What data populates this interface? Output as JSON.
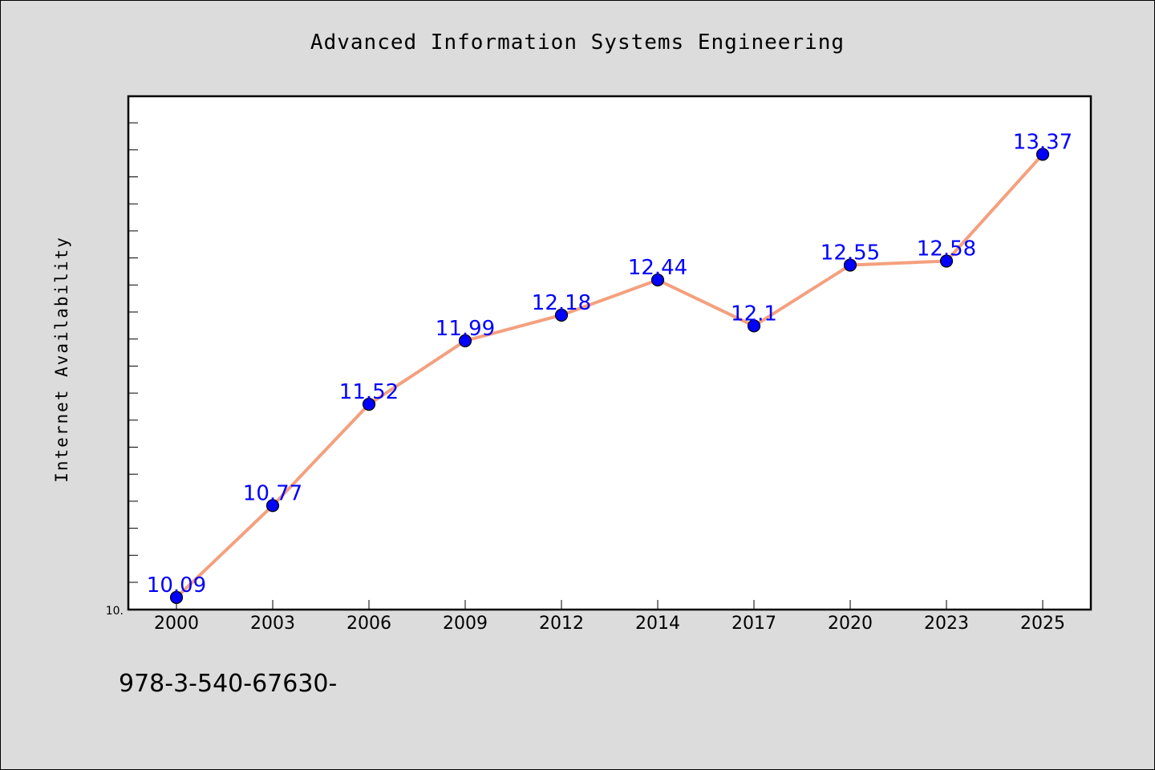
{
  "chart_data": {
    "type": "line",
    "title": "Advanced Information Systems Engineering",
    "xlabel": "",
    "ylabel": "Internet Availability",
    "categories": [
      "2000",
      "2003",
      "2006",
      "2009",
      "2012",
      "2014",
      "2017",
      "2020",
      "2023",
      "2025"
    ],
    "series": [
      {
        "values": [
          10.09,
          10.77,
          11.52,
          11.99,
          12.18,
          12.44,
          12.1,
          12.55,
          12.58,
          13.37
        ],
        "labels": [
          "10.09",
          "10.77",
          "11.52",
          "11.99",
          "12.18",
          "12.44",
          "12.1",
          "12.55",
          "12.58",
          "13.37"
        ]
      }
    ],
    "ylim": [
      10.0,
      13.8
    ],
    "y_tick_label": "10.",
    "grid": false,
    "legend": "none",
    "colors": {
      "line": "#f4a07e",
      "marker": "#0000ff",
      "data_label": "#0000ff",
      "plot_bg": "#ffffff",
      "page_bg": "#dcdcdc"
    }
  },
  "footer_text": "978-3-540-67630-"
}
